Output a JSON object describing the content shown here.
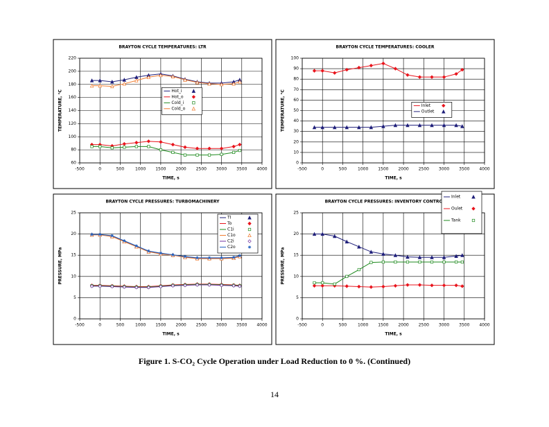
{
  "chart_data": [
    {
      "type": "line",
      "title": "BRAYTON CYCLE TEMPERATURES: LTR",
      "xlabel": "TIME, s",
      "ylabel": "TEMPERATURE, °C",
      "x": [
        -200,
        0,
        300,
        600,
        900,
        1200,
        1500,
        1800,
        2100,
        2400,
        2700,
        3000,
        3300,
        3450
      ],
      "xlim": [
        -500,
        4000
      ],
      "xticks": [
        -500,
        0,
        500,
        1000,
        1500,
        2000,
        2500,
        3000,
        3500,
        4000
      ],
      "ylim": [
        60,
        220
      ],
      "yticks": [
        60,
        80,
        100,
        120,
        140,
        160,
        180,
        200,
        220
      ],
      "grid": true,
      "legend": "center",
      "series": [
        {
          "name": "Hot_i",
          "color": "#1f1f7a",
          "marker": "triangle",
          "values": [
            186,
            186,
            184,
            187,
            191,
            194,
            196,
            193,
            188,
            184,
            182,
            182,
            184,
            187
          ]
        },
        {
          "name": "Hot_o",
          "color": "#e8141c",
          "marker": "diamond",
          "values": [
            88,
            88,
            86,
            89,
            91,
            93,
            92,
            88,
            84,
            82,
            82,
            82,
            85,
            88
          ]
        },
        {
          "name": "Cold_i",
          "color": "#1e8a1e",
          "marker": "square",
          "values": [
            85,
            85,
            83,
            84,
            85,
            85,
            80,
            76,
            72,
            72,
            72,
            73,
            76,
            79
          ]
        },
        {
          "name": "Cold_o",
          "color": "#f07c30",
          "marker": "triangle-open",
          "values": [
            178,
            178,
            177,
            181,
            186,
            191,
            194,
            192,
            187,
            183,
            181,
            180,
            181,
            184
          ]
        }
      ]
    },
    {
      "type": "line",
      "title": "BRAYTON CYCLE TEMPERATURES: COOLER",
      "xlabel": "TIME, s",
      "ylabel": "TEMPERATURE, °C",
      "x": [
        -200,
        0,
        300,
        600,
        900,
        1200,
        1500,
        1800,
        2100,
        2400,
        2700,
        3000,
        3300,
        3450
      ],
      "xlim": [
        -500,
        4000
      ],
      "xticks": [
        -500,
        0,
        500,
        1000,
        1500,
        2000,
        2500,
        3000,
        3500,
        4000
      ],
      "ylim": [
        0,
        100
      ],
      "yticks": [
        0,
        10,
        20,
        30,
        40,
        50,
        60,
        70,
        80,
        90,
        100
      ],
      "grid": true,
      "legend": "center right",
      "series": [
        {
          "name": "Inlet",
          "color": "#e8141c",
          "marker": "diamond",
          "values": [
            88,
            88,
            86,
            89,
            91,
            93,
            95,
            90,
            84,
            82,
            82,
            82,
            85,
            89
          ]
        },
        {
          "name": "Outlet",
          "color": "#1f1f7a",
          "marker": "triangle",
          "values": [
            34,
            34,
            34,
            34,
            34,
            34,
            35,
            36,
            36,
            36,
            36,
            36,
            36,
            35
          ]
        }
      ]
    },
    {
      "type": "line",
      "title": "BRAYTON CYCLE PRESSURES: TURBOMACHINERY",
      "xlabel": "TIME, s",
      "ylabel": "PRESSURE, MPa",
      "x": [
        -200,
        0,
        300,
        600,
        900,
        1200,
        1500,
        1800,
        2100,
        2400,
        2700,
        3000,
        3300,
        3450
      ],
      "xlim": [
        -500,
        4000
      ],
      "xticks": [
        -500,
        0,
        500,
        1000,
        1500,
        2000,
        2500,
        3000,
        3500,
        4000
      ],
      "ylim": [
        0,
        25
      ],
      "yticks": [
        0,
        5,
        10,
        15,
        20,
        25
      ],
      "grid": true,
      "legend": "upper right",
      "series": [
        {
          "name": "TI",
          "color": "#1f1f7a",
          "marker": "triangle",
          "values": [
            19.9,
            19.9,
            19.5,
            18.3,
            17.1,
            15.9,
            15.4,
            15.1,
            14.6,
            14.3,
            14.3,
            14.3,
            14.4,
            14.8
          ]
        },
        {
          "name": "To",
          "color": "#e8141c",
          "marker": "diamond",
          "values": [
            7.9,
            7.9,
            7.8,
            7.7,
            7.6,
            7.6,
            7.8,
            8,
            8.1,
            8.2,
            8.2,
            8.1,
            8,
            7.9
          ]
        },
        {
          "name": "C1i",
          "color": "#1e8a1e",
          "marker": "square",
          "values": [
            7.8,
            7.8,
            7.7,
            7.6,
            7.5,
            7.5,
            7.7,
            7.9,
            8,
            8.1,
            8.1,
            8,
            7.9,
            7.8
          ]
        },
        {
          "name": "C1o",
          "color": "#f07c30",
          "marker": "triangle-open",
          "values": [
            19.8,
            19.8,
            19.4,
            18.2,
            17,
            15.8,
            15.3,
            15,
            14.5,
            14.2,
            14.2,
            14.2,
            14.3,
            14.7
          ]
        },
        {
          "name": "C2i",
          "color": "#7030a0",
          "marker": "diamond-open",
          "values": [
            7.7,
            7.7,
            7.6,
            7.5,
            7.4,
            7.4,
            7.6,
            7.8,
            7.9,
            8,
            8,
            7.9,
            7.8,
            7.7
          ]
        },
        {
          "name": "C2o",
          "color": "#2060c0",
          "marker": "star",
          "values": [
            19.9,
            19.9,
            19.6,
            18.4,
            17.2,
            16,
            15.5,
            15.1,
            14.7,
            14.4,
            14.4,
            14.4,
            14.5,
            14.9
          ]
        }
      ]
    },
    {
      "type": "line",
      "title": "BRAYTON CYCLE PRESSURES: INVENTORY CONTROL",
      "xlabel": "TIME, s",
      "ylabel": "PRESSURE, MPa",
      "x": [
        -200,
        0,
        300,
        600,
        900,
        1200,
        1500,
        1800,
        2100,
        2400,
        2700,
        3000,
        3300,
        3450
      ],
      "xlim": [
        -500,
        4000
      ],
      "xticks": [
        -500,
        0,
        500,
        1000,
        1500,
        2000,
        2500,
        3000,
        3500,
        4000
      ],
      "ylim": [
        0,
        25
      ],
      "yticks": [
        0,
        5,
        10,
        15,
        20,
        25
      ],
      "grid": true,
      "legend": "upper right outside",
      "series": [
        {
          "name": "Inlet",
          "color": "#1f1f7a",
          "marker": "triangle",
          "values": [
            20,
            20,
            19.5,
            18.2,
            17,
            15.8,
            15.3,
            15,
            14.6,
            14.5,
            14.5,
            14.5,
            14.8,
            15
          ]
        },
        {
          "name": "Oulet",
          "color": "#e8141c",
          "marker": "diamond",
          "values": [
            7.8,
            7.8,
            7.8,
            7.7,
            7.6,
            7.5,
            7.6,
            7.8,
            8,
            8,
            7.9,
            7.9,
            7.9,
            7.7
          ]
        },
        {
          "name": "Tank",
          "color": "#1e8a1e",
          "marker": "square",
          "values": [
            8.5,
            8.5,
            8.2,
            10,
            11.6,
            13.3,
            13.4,
            13.4,
            13.4,
            13.4,
            13.4,
            13.4,
            13.4,
            13.4
          ]
        }
      ]
    }
  ],
  "caption": "Figure 1. S-CO₂ Cycle Operation under Load Reduction to 0 %.  (Continued)",
  "page_number": "14"
}
